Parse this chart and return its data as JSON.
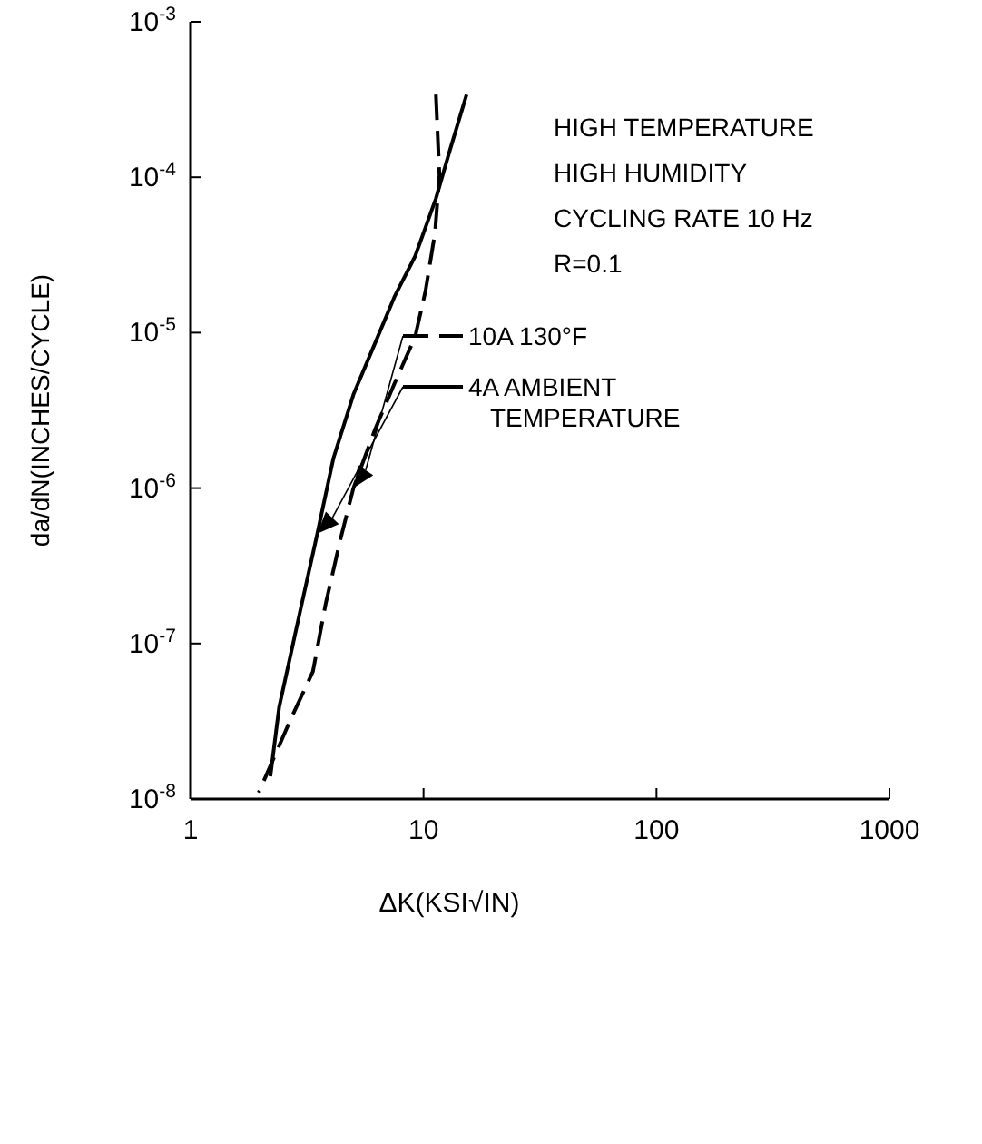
{
  "chart_data": {
    "type": "line",
    "xlabel": "ΔK(KSI√IN)",
    "ylabel": "da/dN(INCHES/CYCLE)",
    "log": "xy",
    "xlim": [
      1,
      1000
    ],
    "ylim": [
      1e-08,
      0.001
    ],
    "xticks": [
      1,
      10,
      100,
      1000
    ],
    "yticks": [
      {
        "value": 1e-08,
        "label": "10$^{-8}$"
      },
      {
        "value": 1e-07,
        "label": "10$^{-7}$"
      },
      {
        "value": 1e-06,
        "label": "10$^{-6}$"
      },
      {
        "value": 1e-05,
        "label": "10$^{-5}$"
      },
      {
        "value": 0.0001,
        "label": "10$^{-4}$"
      },
      {
        "value": 0.001,
        "label": "10$^{-3}$"
      }
    ],
    "grid": false,
    "legend": "right",
    "annotations": [
      "HIGH TEMPERATURE",
      "HIGH HUMIDITY",
      "CYCLING RATE 10 Hz",
      "R=0.1"
    ],
    "series": [
      {
        "name": "10A  130°F",
        "color": "#000000",
        "line_style": "dashed",
        "x": [
          11.3,
          11.7,
          11.2,
          10.2,
          9.2,
          7.5,
          6.2,
          5.0,
          4.4,
          3.8,
          3.35,
          2.7,
          1.96
        ],
        "values": [
          0.00034,
          0.000103,
          4.4e-05,
          1.86e-05,
          9.4e-06,
          4.7e-06,
          2.4e-06,
          1e-06,
          4.7e-07,
          1.8e-07,
          6.6e-08,
          3.3e-08,
          1.1e-08
        ]
      },
      {
        "name": "4A AMBIENT TEMPERATURE",
        "color": "#000000",
        "line_style": "solid",
        "x": [
          15.3,
          12.9,
          11.3,
          9.2,
          7.5,
          6.2,
          5.0,
          4.1,
          3.5,
          3.0,
          2.4,
          2.2
        ],
        "values": [
          0.00034,
          0.000145,
          7.3e-05,
          3.1e-05,
          1.7e-05,
          8.6e-06,
          4e-06,
          1.55e-06,
          5.1e-07,
          1.8e-07,
          3.9e-08,
          1.4e-08
        ]
      }
    ]
  }
}
